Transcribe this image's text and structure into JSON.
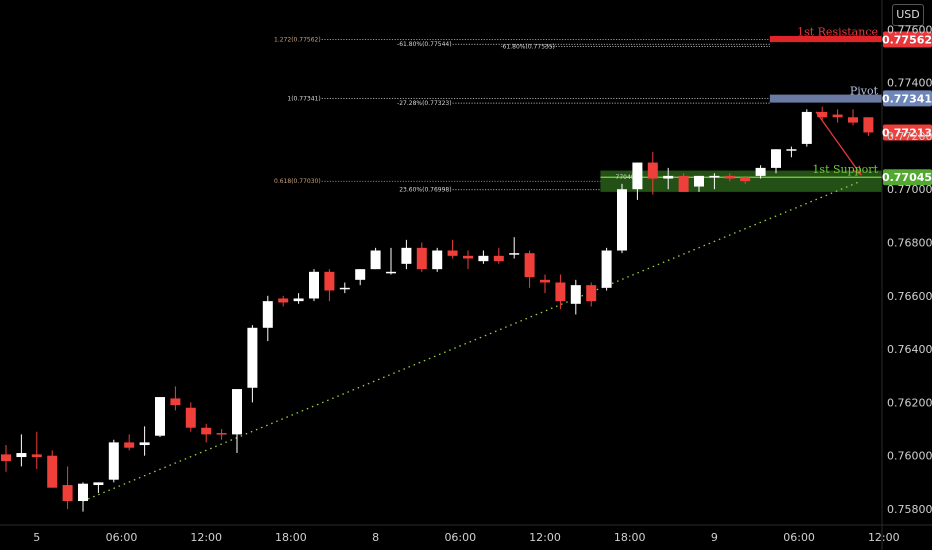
{
  "currency_button": "USD",
  "colors": {
    "background": "#000000",
    "bull": "#ffffff",
    "bear": "#ef3f3a",
    "resistance": "#e8363a",
    "pivot": "#6f86b8",
    "support": "#53a832",
    "trendline": "#9bd24a",
    "grid_text": "#cfcfcf"
  },
  "chart_data": {
    "type": "candlestick",
    "y_range": [
      0.7574,
      0.7771
    ],
    "x_range": [
      0,
      58
    ],
    "price_ticks": [
      "0.77600",
      "0.77400",
      "0.77200",
      "0.77000",
      "0.76800",
      "0.76600",
      "0.76400",
      "0.76200",
      "0.76000",
      "0.75800"
    ],
    "price_tick_values": [
      0.776,
      0.774,
      0.772,
      0.77,
      0.768,
      0.766,
      0.764,
      0.762,
      0.76,
      0.758
    ],
    "time_ticks": [
      {
        "label": "5",
        "x": 2
      },
      {
        "label": "06:00",
        "x": 7.5
      },
      {
        "label": "12:00",
        "x": 13
      },
      {
        "label": "18:00",
        "x": 18.5
      },
      {
        "label": "8",
        "x": 24
      },
      {
        "label": "06:00",
        "x": 29.5
      },
      {
        "label": "12:00",
        "x": 35
      },
      {
        "label": "18:00",
        "x": 40.5
      },
      {
        "label": "9",
        "x": 46
      },
      {
        "label": "06:00",
        "x": 51.5
      },
      {
        "label": "12:00",
        "x": 57
      }
    ],
    "candles": [
      {
        "o": 0.76005,
        "h": 0.7604,
        "l": 0.7594,
        "c": 0.7598
      },
      {
        "o": 0.75995,
        "h": 0.7608,
        "l": 0.7596,
        "c": 0.7601
      },
      {
        "o": 0.76005,
        "h": 0.7609,
        "l": 0.7595,
        "c": 0.75995
      },
      {
        "o": 0.76,
        "h": 0.7602,
        "l": 0.7588,
        "c": 0.7588
      },
      {
        "o": 0.7589,
        "h": 0.7596,
        "l": 0.758,
        "c": 0.7583
      },
      {
        "o": 0.7583,
        "h": 0.759,
        "l": 0.7579,
        "c": 0.75895
      },
      {
        "o": 0.7589,
        "h": 0.759,
        "l": 0.7586,
        "c": 0.759
      },
      {
        "o": 0.7591,
        "h": 0.7606,
        "l": 0.759,
        "c": 0.7605
      },
      {
        "o": 0.7605,
        "h": 0.7608,
        "l": 0.7602,
        "c": 0.7603
      },
      {
        "o": 0.7604,
        "h": 0.7611,
        "l": 0.76,
        "c": 0.7605
      },
      {
        "o": 0.76075,
        "h": 0.7622,
        "l": 0.7607,
        "c": 0.7622
      },
      {
        "o": 0.76215,
        "h": 0.7626,
        "l": 0.7617,
        "c": 0.7619
      },
      {
        "o": 0.7618,
        "h": 0.762,
        "l": 0.7609,
        "c": 0.76105
      },
      {
        "o": 0.76105,
        "h": 0.7612,
        "l": 0.7605,
        "c": 0.7608
      },
      {
        "o": 0.76085,
        "h": 0.761,
        "l": 0.7606,
        "c": 0.7608
      },
      {
        "o": 0.7608,
        "h": 0.7625,
        "l": 0.7601,
        "c": 0.7625
      },
      {
        "o": 0.76255,
        "h": 0.7649,
        "l": 0.762,
        "c": 0.7648
      },
      {
        "o": 0.7648,
        "h": 0.766,
        "l": 0.7643,
        "c": 0.7658
      },
      {
        "o": 0.7659,
        "h": 0.766,
        "l": 0.7656,
        "c": 0.76575
      },
      {
        "o": 0.7658,
        "h": 0.7661,
        "l": 0.7657,
        "c": 0.7659
      },
      {
        "o": 0.7659,
        "h": 0.767,
        "l": 0.7658,
        "c": 0.7669
      },
      {
        "o": 0.7669,
        "h": 0.767,
        "l": 0.7658,
        "c": 0.7662
      },
      {
        "o": 0.7663,
        "h": 0.7665,
        "l": 0.7661,
        "c": 0.7663
      },
      {
        "o": 0.7666,
        "h": 0.767,
        "l": 0.7664,
        "c": 0.767
      },
      {
        "o": 0.767,
        "h": 0.7678,
        "l": 0.767,
        "c": 0.7677
      },
      {
        "o": 0.7669,
        "h": 0.7678,
        "l": 0.7668,
        "c": 0.7669
      },
      {
        "o": 0.7672,
        "h": 0.7681,
        "l": 0.767,
        "c": 0.7678
      },
      {
        "o": 0.7678,
        "h": 0.768,
        "l": 0.7669,
        "c": 0.767
      },
      {
        "o": 0.767,
        "h": 0.7678,
        "l": 0.7669,
        "c": 0.7677
      },
      {
        "o": 0.7677,
        "h": 0.7681,
        "l": 0.7674,
        "c": 0.7675
      },
      {
        "o": 0.7675,
        "h": 0.7677,
        "l": 0.767,
        "c": 0.7674
      },
      {
        "o": 0.7673,
        "h": 0.7677,
        "l": 0.7672,
        "c": 0.7675
      },
      {
        "o": 0.7675,
        "h": 0.7678,
        "l": 0.7672,
        "c": 0.7673
      },
      {
        "o": 0.7676,
        "h": 0.7682,
        "l": 0.7674,
        "c": 0.7676
      },
      {
        "o": 0.7676,
        "h": 0.7677,
        "l": 0.7663,
        "c": 0.7667
      },
      {
        "o": 0.7666,
        "h": 0.7668,
        "l": 0.7661,
        "c": 0.7665
      },
      {
        "o": 0.7665,
        "h": 0.7668,
        "l": 0.7655,
        "c": 0.7658
      },
      {
        "o": 0.7657,
        "h": 0.7666,
        "l": 0.7653,
        "c": 0.7664
      },
      {
        "o": 0.7664,
        "h": 0.7665,
        "l": 0.7656,
        "c": 0.7658
      },
      {
        "o": 0.7663,
        "h": 0.7678,
        "l": 0.7662,
        "c": 0.7677
      },
      {
        "o": 0.7677,
        "h": 0.7702,
        "l": 0.7676,
        "c": 0.77
      },
      {
        "o": 0.77,
        "h": 0.771,
        "l": 0.7696,
        "c": 0.771
      },
      {
        "o": 0.771,
        "h": 0.7714,
        "l": 0.7698,
        "c": 0.7704
      },
      {
        "o": 0.7704,
        "h": 0.7708,
        "l": 0.77,
        "c": 0.7705
      },
      {
        "o": 0.7705,
        "h": 0.7706,
        "l": 0.7699,
        "c": 0.7699
      },
      {
        "o": 0.7701,
        "h": 0.7705,
        "l": 0.7699,
        "c": 0.7705
      },
      {
        "o": 0.7705,
        "h": 0.7706,
        "l": 0.77,
        "c": 0.7705
      },
      {
        "o": 0.7705,
        "h": 0.7706,
        "l": 0.7703,
        "c": 0.7704
      },
      {
        "o": 0.77045,
        "h": 0.7705,
        "l": 0.7702,
        "c": 0.7703
      },
      {
        "o": 0.7705,
        "h": 0.7709,
        "l": 0.7704,
        "c": 0.7708
      },
      {
        "o": 0.7708,
        "h": 0.7715,
        "l": 0.7706,
        "c": 0.7715
      },
      {
        "o": 0.7715,
        "h": 0.7716,
        "l": 0.7712,
        "c": 0.7715
      },
      {
        "o": 0.7717,
        "h": 0.773,
        "l": 0.7716,
        "c": 0.7729
      },
      {
        "o": 0.7729,
        "h": 0.7731,
        "l": 0.7726,
        "c": 0.7727
      },
      {
        "o": 0.7728,
        "h": 0.773,
        "l": 0.7725,
        "c": 0.7727
      },
      {
        "o": 0.7727,
        "h": 0.773,
        "l": 0.7724,
        "c": 0.7725
      },
      {
        "o": 0.7727,
        "h": 0.7727,
        "l": 0.772,
        "c": 0.77213
      }
    ],
    "levels": [
      {
        "name": "1st Resistance",
        "price": 0.77562,
        "tag": "0.77562",
        "color": "#e8363a",
        "tag_bg": "#e8363a"
      },
      {
        "name": "Pivot",
        "price": 0.77341,
        "tag": "0.77341",
        "color": "#b8c4e0",
        "tag_bg": "#6f86b8"
      },
      {
        "name": "1st Support",
        "price": 0.77045,
        "tag": "0.77045",
        "color": "#6ccc3c",
        "tag_bg": "#53a832"
      }
    ],
    "last_price": {
      "value": 0.77213,
      "tag": "0.77213",
      "color": "#ef3f3a"
    },
    "fib_labels": [
      {
        "text": "1.272(0.77562)",
        "price": 0.77562,
        "x_anchor": "left",
        "color": "#c9a27e"
      },
      {
        "text": "-61.80%(0.77544)",
        "price": 0.77544,
        "x_anchor": "mid",
        "color": "#d8d8d8"
      },
      {
        "text": "-61.80%(0.77535)",
        "price": 0.77535,
        "x_anchor": "right",
        "color": "#d8d8d8"
      },
      {
        "text": "1(0.77341)",
        "price": 0.77341,
        "x_anchor": "left",
        "color": "#d8d8d8"
      },
      {
        "text": "-27.28%(0.77323)",
        "price": 0.77323,
        "x_anchor": "mid",
        "color": "#d8d8d8"
      },
      {
        "text": "0.618(0.77030)",
        "price": 0.7703,
        "x_anchor": "left",
        "color": "#c9a27e"
      },
      {
        "text": "23.60%(0.76998)",
        "price": 0.76998,
        "x_anchor": "mid",
        "color": "#d8d8d8"
      },
      {
        "text": "77040",
        "price": 0.77045,
        "x_anchor": "zone",
        "color": "#d8d8d8"
      }
    ],
    "trendline": {
      "from": {
        "x": 5,
        "y": 0.7583
      },
      "to": {
        "x": 55.5,
        "y": 0.7703
      }
    },
    "arrow": {
      "from": {
        "x": 52.6,
        "y": 0.7729
      },
      "to": {
        "x": 55.5,
        "y": 0.77055
      }
    },
    "support_zone": {
      "from_x": 38.6,
      "top": 0.7707,
      "bottom": 0.7699
    },
    "pivot_zone": {
      "from_x": 49.6,
      "top": 0.77355,
      "bottom": 0.77325
    },
    "resistance_zone": {
      "from_x": 49.6,
      "top": 0.77575,
      "bottom": 0.77552
    }
  }
}
